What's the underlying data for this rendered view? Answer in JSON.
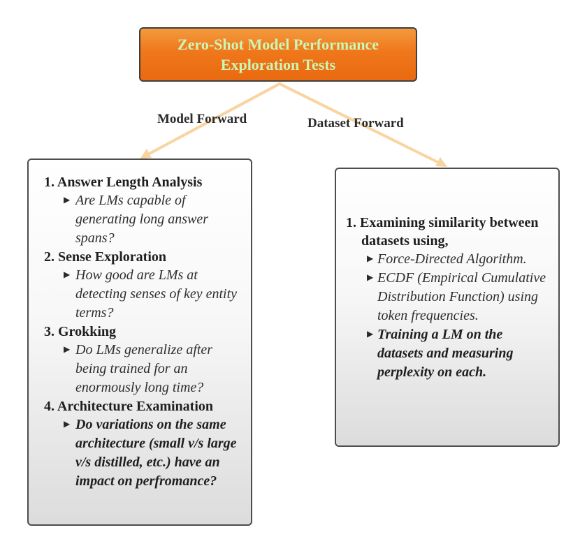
{
  "root": {
    "title_line1": "Zero-Shot Model Performance",
    "title_line2": "Exploration Tests"
  },
  "edges": {
    "left_label": "Model Forward",
    "right_label": "Dataset Forward"
  },
  "model_forward": {
    "items": [
      {
        "heading": "1. Answer Length Analysis",
        "points": [
          {
            "text": "Are LMs capable of generating long answer spans?",
            "bold": false
          }
        ]
      },
      {
        "heading": "2. Sense Exploration",
        "points": [
          {
            "text": "How good are LMs at detecting senses of key entity terms?",
            "bold": false
          }
        ]
      },
      {
        "heading": "3. Grokking",
        "points": [
          {
            "text": "Do LMs generalize after being trained for an enormously long time?",
            "bold": false
          }
        ]
      },
      {
        "heading": "4. Architecture Examination",
        "points": [
          {
            "text": "Do variations on the same architecture (small v/s large v/s distilled, etc.) have an impact on perfromance?",
            "bold": true
          }
        ]
      }
    ]
  },
  "dataset_forward": {
    "items": [
      {
        "heading": "1. Examining similarity between datasets using,",
        "points": [
          {
            "text": "Force-Directed Algorithm.",
            "bold": false
          },
          {
            "text": "ECDF (Empirical Cumulative Distribution Function) using token frequencies.",
            "bold": false
          },
          {
            "text": "Training a LM on the datasets and measuring perplexity on each.",
            "bold": true
          }
        ]
      }
    ]
  },
  "colors": {
    "root_fill": "#f0771b",
    "root_text": "#c9f7b6",
    "connector": "#f8d4a0",
    "card_border": "#4d4d4d"
  },
  "icons": {
    "bullet": "triangle-right-icon"
  }
}
